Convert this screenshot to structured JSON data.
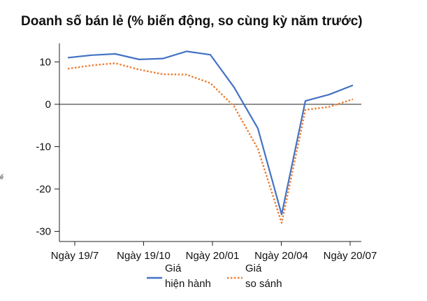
{
  "chart_data": {
    "type": "line",
    "title": "Doanh số bán lẻ (% biến động, so cùng kỳ năm trước)",
    "xlabel": "",
    "ylabel": "",
    "x_tick_labels": [
      "Ngày 19/7",
      "Ngày 19/10",
      "Ngày 20/01",
      "Ngày 20/04",
      "Ngày 20/07"
    ],
    "y_ticks": [
      10,
      0,
      -10,
      -20,
      -30
    ],
    "ylim": [
      -33,
      14.5
    ],
    "x_points": 14,
    "grid": false,
    "legend_position": "bottom",
    "series": [
      {
        "name": "Giá hiện hành",
        "legend_lines": [
          "Giá",
          "hiện hành"
        ],
        "color": "#4472c4",
        "style": "solid",
        "values": [
          11.0,
          11.6,
          11.9,
          10.6,
          10.8,
          12.5,
          11.7,
          4.0,
          -5.7,
          -26.0,
          0.8,
          2.3,
          4.5
        ]
      },
      {
        "name": "Giá so sánh",
        "legend_lines": [
          "Giá",
          "so sánh"
        ],
        "color": "#ed7d31",
        "style": "dotted",
        "values": [
          8.4,
          9.2,
          9.7,
          8.2,
          7.1,
          7.0,
          5.0,
          -0.5,
          -10.5,
          -28.0,
          -1.3,
          -0.6,
          1.2
        ]
      }
    ]
  },
  "side_fragment": "ế"
}
